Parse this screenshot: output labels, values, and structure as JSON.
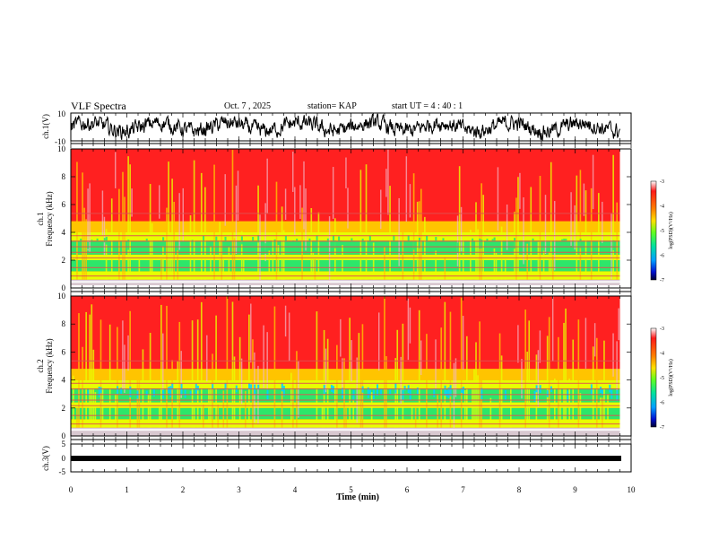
{
  "header": {
    "title": "VLF Spectra",
    "date": "Oct. 7 , 2025",
    "station": "station= KAP",
    "start": "start  UT =  4 : 40 : 1"
  },
  "chart_data": [
    {
      "type": "line",
      "name": "ch.1 waveform",
      "ylabel": "ch.1(V)",
      "ylim": [
        -10,
        10
      ],
      "yticks": [
        "10",
        "-10"
      ],
      "xlim": [
        0,
        10
      ],
      "description_values": "noisy oscillation mostly between -8 and 8 V"
    },
    {
      "type": "heatmap",
      "name": "ch.1 spectrogram",
      "ylabel": "ch.1\nFrequency (kHz)",
      "ylim": [
        0,
        10
      ],
      "yticks": [
        "0",
        "2",
        "4",
        "6",
        "8",
        "10"
      ],
      "xlim": [
        0,
        9.8
      ],
      "colorbar": {
        "label": "log(PSD)(V²/Hz)",
        "ticks": [
          "-3",
          "-4",
          "-5",
          "-6",
          "-7"
        ],
        "range": [
          -7,
          -3
        ]
      }
    },
    {
      "type": "heatmap",
      "name": "ch.2 spectrogram",
      "ylabel": "ch.2\nFrequency (kHz)",
      "ylim": [
        0,
        10
      ],
      "yticks": [
        "0",
        "2",
        "4",
        "6",
        "8",
        "10"
      ],
      "xlim": [
        0,
        9.8
      ],
      "colorbar": {
        "label": "log(PSD)(V²/Hz)",
        "ticks": [
          "-3",
          "-4",
          "-5",
          "-6",
          "-7"
        ],
        "range": [
          -7,
          -3
        ]
      }
    },
    {
      "type": "line",
      "name": "ch.3 waveform",
      "ylabel": "ch.3(V)",
      "ylim": [
        -5,
        5
      ],
      "yticks": [
        "5",
        "0",
        "-5"
      ],
      "xlim": [
        0,
        10
      ],
      "level": 0
    }
  ],
  "x_axis": {
    "label": "Time (min)",
    "ticks": [
      "0",
      "1",
      "2",
      "3",
      "4",
      "5",
      "6",
      "7",
      "8",
      "9",
      "10"
    ]
  },
  "colors": {
    "high": "#ff2020",
    "mid_high": "#ffc400",
    "mid": "#e8ff00",
    "mid_low": "#2de66a",
    "low": "#00d4ff",
    "lowest": "#1c1cff"
  }
}
